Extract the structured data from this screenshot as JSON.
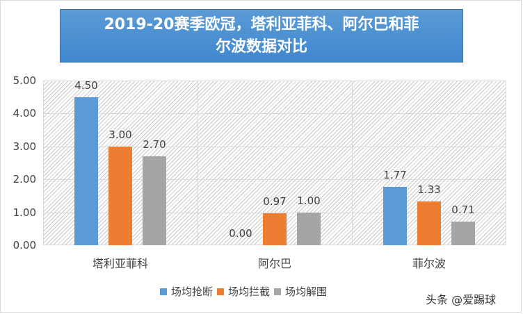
{
  "title": {
    "line1": "2019-20赛季欧冠，塔利亚菲科、阿尔巴和菲",
    "line2": "尔波数据对比"
  },
  "colors": {
    "title_bg": "#5b9bd5",
    "series": [
      "#5b9bd5",
      "#ed7d31",
      "#a5a5a5"
    ]
  },
  "yaxis": {
    "ticks": [
      "5.00",
      "4.00",
      "3.00",
      "2.00",
      "1.00",
      "0.00"
    ]
  },
  "legend": {
    "items": [
      {
        "label": "场均抢断",
        "color": "#5b9bd5"
      },
      {
        "label": "场均拦截",
        "color": "#ed7d31"
      },
      {
        "label": "场均解围",
        "color": "#a5a5a5"
      }
    ]
  },
  "watermark": "头条 @爱踢球",
  "chart_data": {
    "type": "bar",
    "title": "2019-20赛季欧冠，塔利亚菲科、阿尔巴和菲尔波数据对比",
    "categories": [
      "塔利亚菲科",
      "阿尔巴",
      "菲尔波"
    ],
    "series": [
      {
        "name": "场均抢断",
        "values": [
          4.5,
          0.0,
          1.77
        ],
        "labels": [
          "4.50",
          "0.00",
          "1.77"
        ]
      },
      {
        "name": "场均拦截",
        "values": [
          3.0,
          0.97,
          1.33
        ],
        "labels": [
          "3.00",
          "0.97",
          "1.33"
        ]
      },
      {
        "name": "场均解围",
        "values": [
          2.7,
          1.0,
          0.71
        ],
        "labels": [
          "2.70",
          "1.00",
          "0.71"
        ]
      }
    ],
    "xlabel": "",
    "ylabel": "",
    "ylim": [
      0,
      5
    ],
    "yticks": [
      0,
      1,
      2,
      3,
      4,
      5
    ],
    "grid": true,
    "legend_position": "bottom"
  }
}
